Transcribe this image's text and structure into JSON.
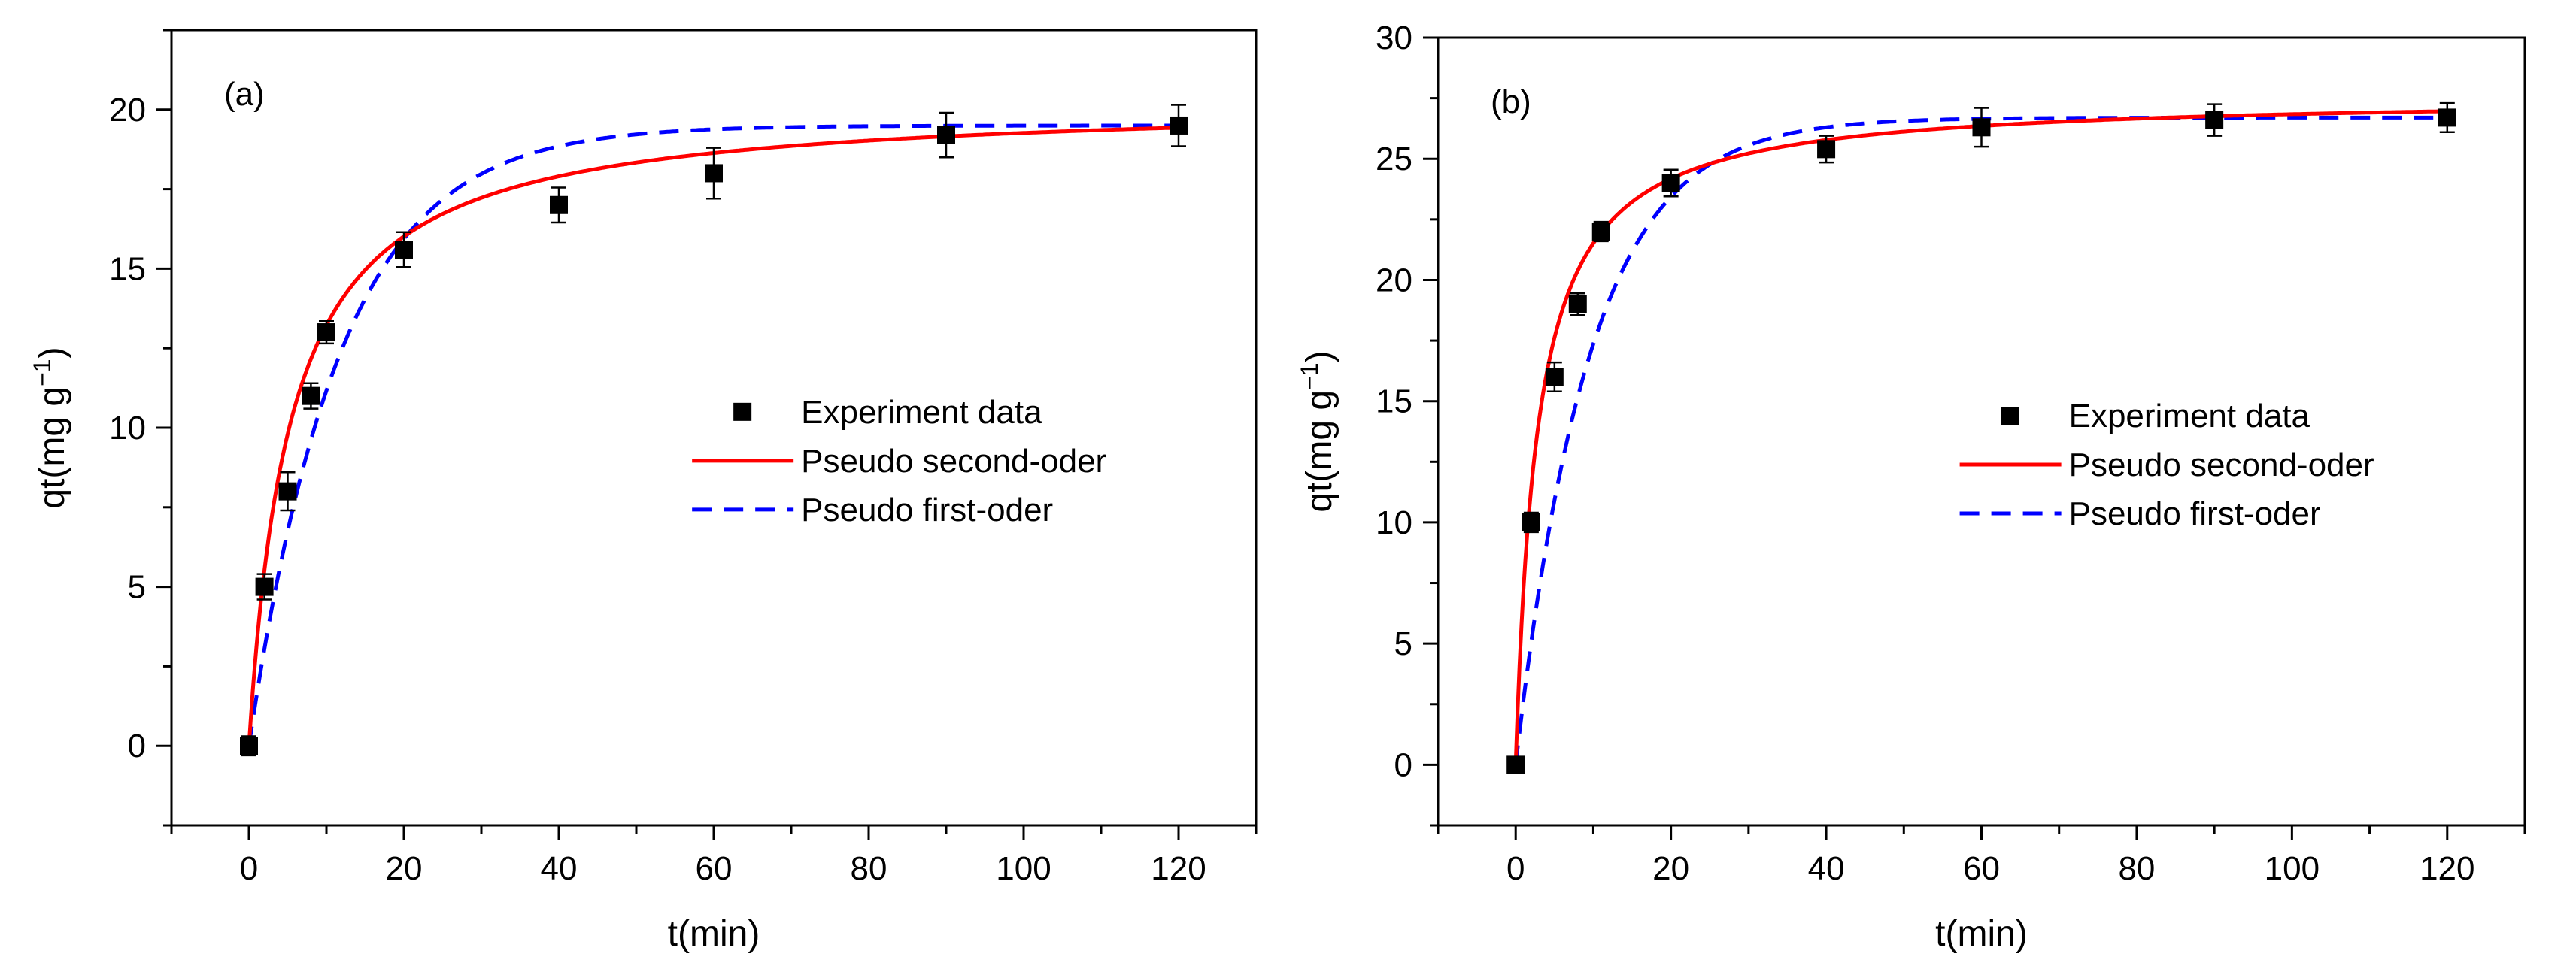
{
  "chart_data": [
    {
      "type": "scatter",
      "panel_label": "(a)",
      "xlabel": "t(min)",
      "ylabel_main": "qt(mg g",
      "ylabel_sup": "−1",
      "ylabel_close": ")",
      "xlim": [
        -10,
        130
      ],
      "ylim": [
        -2.5,
        22.5
      ],
      "xticks": [
        0,
        20,
        40,
        60,
        80,
        100,
        120
      ],
      "yticks": [
        0,
        5,
        10,
        15,
        20
      ],
      "x_tick_labels": [
        "0",
        "20",
        "40",
        "60",
        "80",
        "100",
        "120"
      ],
      "y_tick_labels": [
        "0",
        "5",
        "10",
        "15",
        "20"
      ],
      "legend_position": "center-right",
      "series": [
        {
          "name": "Experiment data",
          "kind": "markers",
          "color": "#000000",
          "x": [
            0,
            2,
            5,
            8,
            10,
            20,
            40,
            60,
            90,
            120
          ],
          "y": [
            0,
            5,
            8,
            11,
            13,
            15.6,
            17,
            18,
            19.2,
            19.5
          ],
          "yerr": [
            0.3,
            0.4,
            0.6,
            0.4,
            0.35,
            0.55,
            0.55,
            0.8,
            0.7,
            0.65
          ]
        },
        {
          "name": "Pseudo second-oder",
          "kind": "line",
          "color": "#ff0000",
          "model": "pso",
          "qe": 20.3,
          "k": 0.0092
        },
        {
          "name": "Pseudo first-oder",
          "kind": "dashed",
          "color": "#0000ff",
          "model": "pfo",
          "qe": 19.5,
          "k": 0.085
        }
      ]
    },
    {
      "type": "scatter",
      "panel_label": "(b)",
      "xlabel": "t(min)",
      "ylabel_main": "qt(mg g",
      "ylabel_sup": "−1",
      "ylabel_close": ")",
      "xlim": [
        -10,
        130
      ],
      "ylim": [
        -2.5,
        30
      ],
      "xticks": [
        0,
        20,
        40,
        60,
        80,
        100,
        120
      ],
      "yticks": [
        0,
        5,
        10,
        15,
        20,
        25,
        30
      ],
      "x_tick_labels": [
        "0",
        "20",
        "40",
        "60",
        "80",
        "100",
        "120"
      ],
      "y_tick_labels": [
        "0",
        "5",
        "10",
        "15",
        "20",
        "25",
        "30"
      ],
      "legend_position": "center-right",
      "series": [
        {
          "name": "Experiment data",
          "kind": "markers",
          "color": "#000000",
          "x": [
            0,
            2,
            5,
            8,
            11,
            20,
            40,
            60,
            90,
            120
          ],
          "y": [
            0,
            10,
            16,
            19,
            22,
            24,
            25.4,
            26.3,
            26.6,
            26.7
          ],
          "yerr": [
            0.3,
            0.4,
            0.6,
            0.45,
            0.4,
            0.55,
            0.55,
            0.8,
            0.65,
            0.6
          ]
        },
        {
          "name": "Pseudo second-oder",
          "kind": "line",
          "color": "#ff0000",
          "model": "pso",
          "qe": 27.6,
          "k": 0.0128
        },
        {
          "name": "Pseudo first-oder",
          "kind": "dashed",
          "color": "#0000ff",
          "model": "pfo",
          "qe": 26.7,
          "k": 0.105
        }
      ]
    }
  ]
}
